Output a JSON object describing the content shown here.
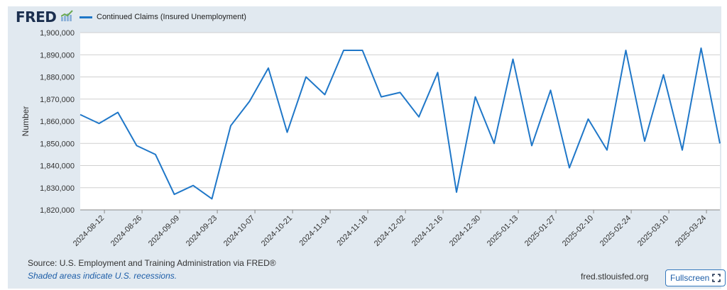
{
  "header": {
    "logo_text": "FRED",
    "logo_icon": "chart-line-icon"
  },
  "chart_data": {
    "type": "line",
    "title": "",
    "xlabel": "",
    "ylabel": "Number",
    "ylim": [
      1820000,
      1900000
    ],
    "y_ticks": [
      1820000,
      1830000,
      1840000,
      1850000,
      1860000,
      1870000,
      1880000,
      1890000,
      1900000
    ],
    "y_tick_labels": [
      "1,820,000",
      "1,830,000",
      "1,840,000",
      "1,850,000",
      "1,860,000",
      "1,870,000",
      "1,880,000",
      "1,890,000",
      "1,900,000"
    ],
    "x_tick_labels": [
      "2024-08-12",
      "2024-08-26",
      "2024-09-09",
      "2024-09-23",
      "2024-10-07",
      "2024-10-21",
      "2024-11-04",
      "2024-11-18",
      "2024-12-02",
      "2024-12-16",
      "2024-12-30",
      "2025-01-13",
      "2025-01-27",
      "2025-02-10",
      "2025-02-24",
      "2025-03-10",
      "2025-03-24"
    ],
    "legend_position": "top-left",
    "grid": true,
    "series": [
      {
        "name": "Continued Claims (Insured Unemployment)",
        "color": "#1f77c8",
        "x": [
          "2024-08-03",
          "2024-08-10",
          "2024-08-17",
          "2024-08-24",
          "2024-08-31",
          "2024-09-07",
          "2024-09-14",
          "2024-09-21",
          "2024-09-28",
          "2024-10-05",
          "2024-10-12",
          "2024-10-19",
          "2024-10-26",
          "2024-11-02",
          "2024-11-09",
          "2024-11-16",
          "2024-11-23",
          "2024-11-30",
          "2024-12-07",
          "2024-12-14",
          "2024-12-21",
          "2024-12-28",
          "2025-01-04",
          "2025-01-11",
          "2025-01-18",
          "2025-01-25",
          "2025-02-01",
          "2025-02-08",
          "2025-02-15",
          "2025-02-22",
          "2025-03-01",
          "2025-03-08",
          "2025-03-15",
          "2025-03-22",
          "2025-03-29"
        ],
        "values": [
          1863000,
          1859000,
          1864000,
          1849000,
          1845000,
          1827000,
          1831000,
          1825000,
          1858000,
          1869000,
          1884000,
          1855000,
          1880000,
          1872000,
          1892000,
          1892000,
          1871000,
          1873000,
          1862000,
          1882000,
          1828000,
          1871000,
          1850000,
          1888000,
          1849000,
          1874000,
          1839000,
          1861000,
          1847000,
          1892000,
          1851000,
          1881000,
          1847000,
          1893000,
          1850000
        ]
      }
    ]
  },
  "footer": {
    "source": "Source: U.S. Employment and Training Administration via FRED®",
    "note": "Shaded areas indicate U.S. recessions.",
    "site": "fred.stlouisfed.org",
    "fullscreen_label": "Fullscreen",
    "fullscreen_icon": "expand-icon"
  }
}
